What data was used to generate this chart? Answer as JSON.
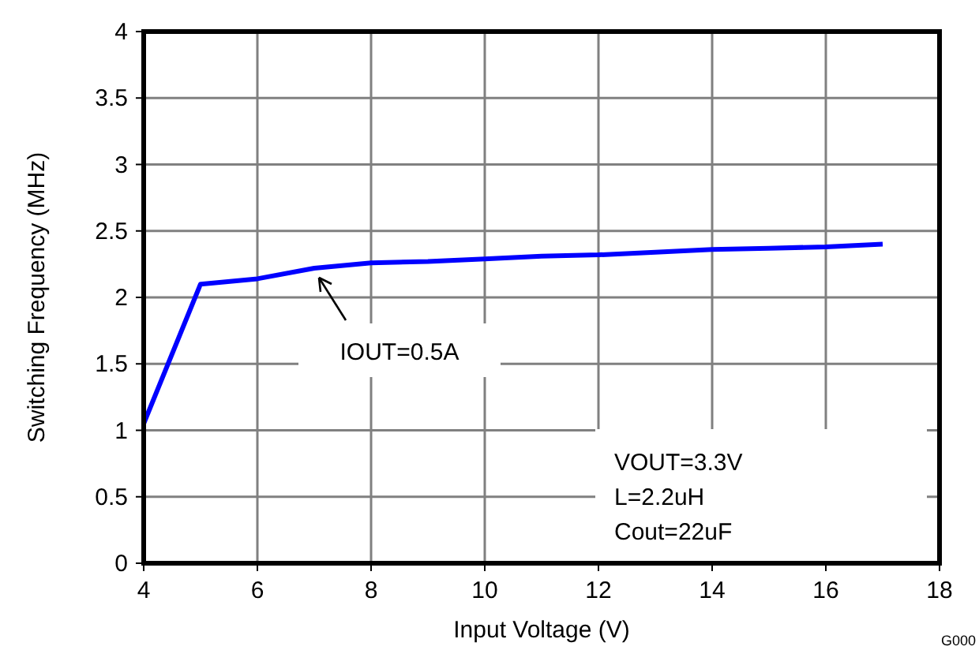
{
  "chart_data": {
    "type": "line",
    "xlabel": "Input Voltage (V)",
    "ylabel": "Switching Frequency (MHz)",
    "x": [
      4,
      5,
      6,
      7,
      8,
      9,
      10,
      11,
      12,
      13,
      14,
      15,
      16,
      17
    ],
    "series": [
      {
        "color": "#0000ff",
        "values": [
          1.05,
          2.1,
          2.14,
          2.22,
          2.26,
          2.27,
          2.29,
          2.31,
          2.32,
          2.34,
          2.36,
          2.37,
          2.38,
          2.4
        ]
      }
    ],
    "xlim": [
      4,
      18
    ],
    "xticks": [
      4,
      6,
      8,
      10,
      12,
      14,
      16,
      18
    ],
    "ylim": [
      0,
      4
    ],
    "yticks": [
      0,
      0.5,
      1,
      1.5,
      2,
      2.5,
      3,
      3.5,
      4
    ],
    "grid": true,
    "marker": "none",
    "line_style": "solid",
    "annotations": [
      "IOUT=0.5A",
      "VOUT=3.3V\nL=2.2uH\nCout=22uF",
      "G000"
    ]
  }
}
